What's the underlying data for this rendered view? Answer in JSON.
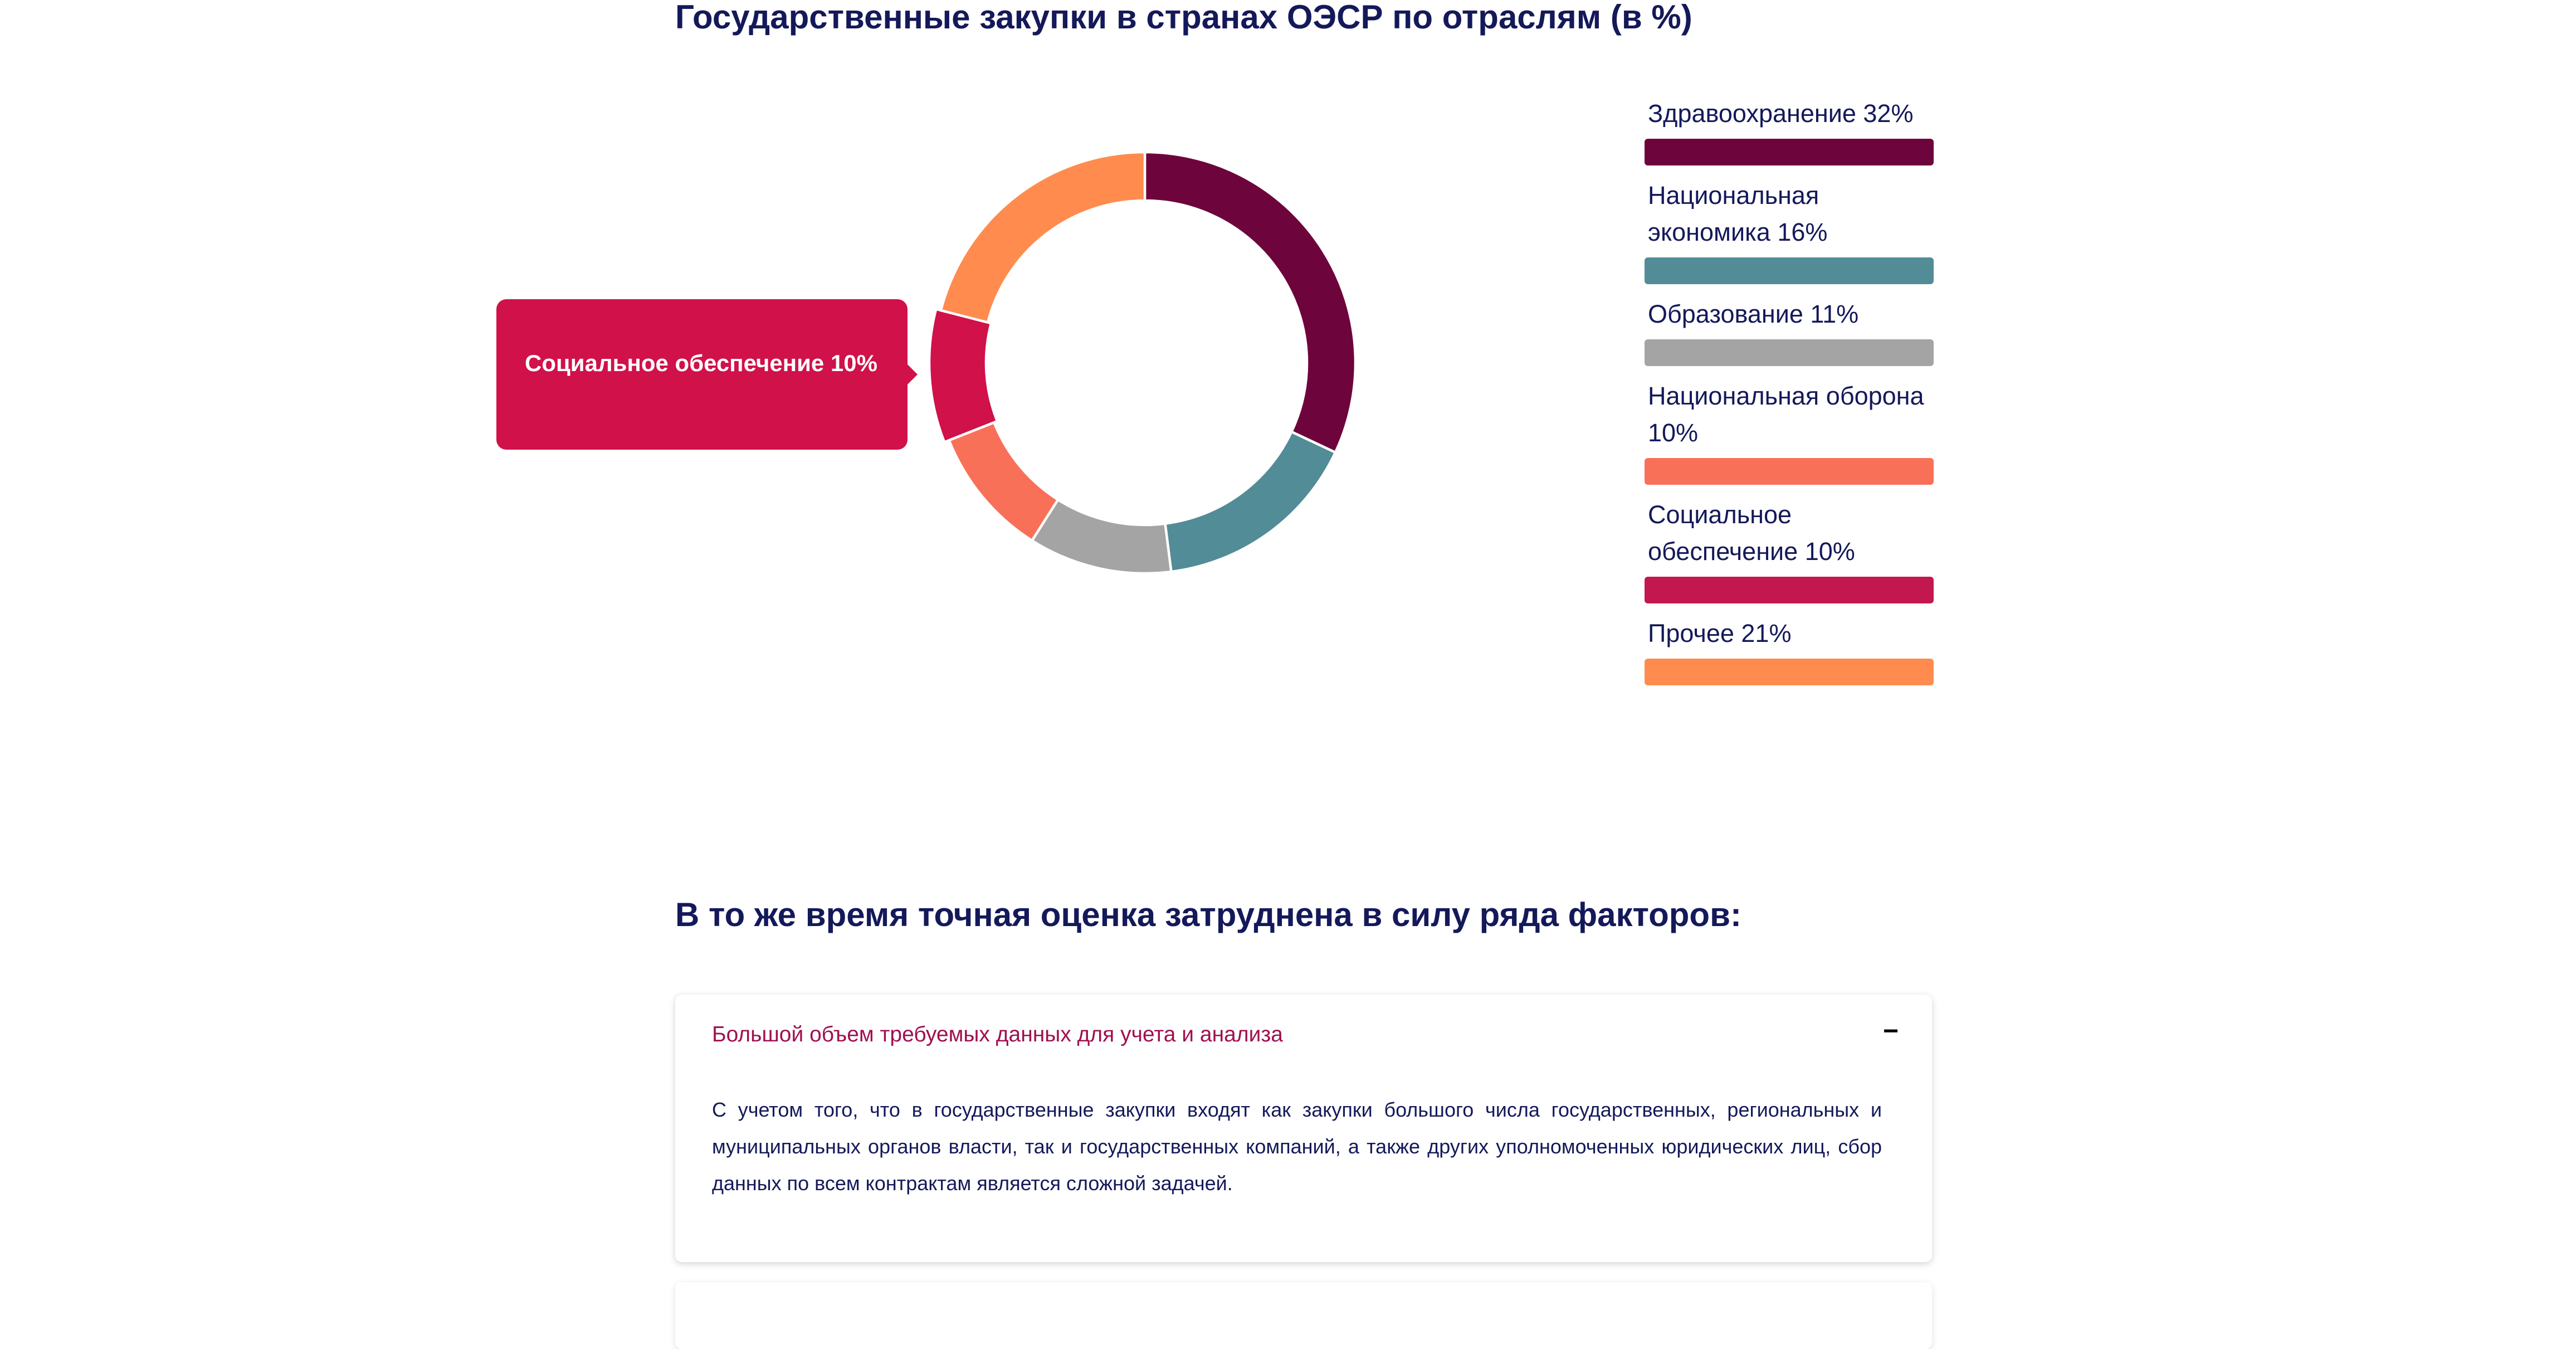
{
  "chart_data": {
    "type": "pie",
    "title": "Государственные закупки в странах ОЭСР  по отраслям (в %)",
    "categories": [
      "Здравоохранение",
      "Национальная экономика",
      "Образование",
      "Национальная оборона",
      "Социальное обеспечение",
      "Прочее"
    ],
    "values": [
      32,
      16,
      11,
      10,
      10,
      21
    ],
    "colors": [
      "#6e043c",
      "#528c96",
      "#a4a4a4",
      "#f97058",
      "#c2184f",
      "#ff8c4e"
    ],
    "legend_labels": [
      "Здравоохранение 32%",
      "Национальная экономика 16%",
      "Образование 11%",
      "Национальная оборона 10%",
      "Социальное обеспечение 10%",
      "Прочее 21%"
    ],
    "legend_position": "right",
    "highlighted_index": 4,
    "tooltip": "Социальное обеспечение 10%",
    "highlight_color": "#d0114a"
  },
  "section": {
    "heading": "В то же время точная оценка затруднена в силу ряда факторов:",
    "accordion": [
      {
        "title": "Большой объем требуемых данных для учета и анализа",
        "toggle": "−",
        "body": "С учетом того, что в государственные закупки входят как закупки большого числа государственных, региональных и муниципальных органов власти, так и государственных компаний, а также других уполномоченных юридических лиц, сбор данных по всем контрактам является сложной задачей."
      }
    ]
  }
}
